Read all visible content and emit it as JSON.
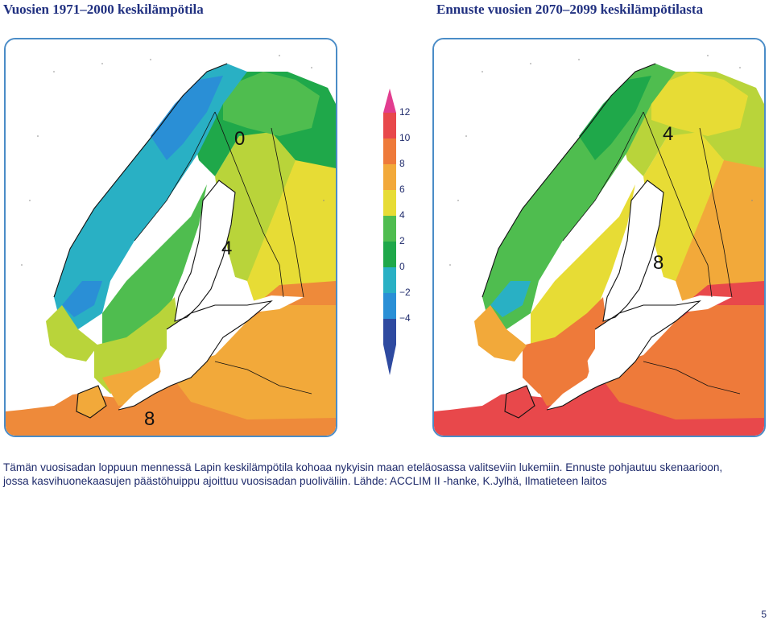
{
  "titles": {
    "left": "Vuosien 1971–2000 keskilämpötila",
    "right": "Ennuste vuosien 2070–2099 keskilämpötilasta"
  },
  "maps": {
    "left": {
      "labels": [
        "0",
        "4",
        "8"
      ],
      "colors": {
        "sea": "#ffffff",
        "north": "#2a8fd6",
        "mountains": "#29b0c4",
        "green_dark": "#1fa84a",
        "green": "#4fbd4f",
        "yellow_green": "#b9d43a",
        "yellow": "#e7dc35",
        "orange": "#f2a93a",
        "orange_dark": "#ee8a3a"
      }
    },
    "right": {
      "labels": [
        "4",
        "8"
      ],
      "colors": {
        "sea": "#ffffff",
        "mountains": "#29b0c4",
        "green": "#4fbd4f",
        "yellow_green": "#b9d43a",
        "yellow": "#e7dc35",
        "orange": "#f2a93a",
        "orange_dark": "#ee7a3a",
        "red": "#e8484b"
      }
    }
  },
  "legend": {
    "ticks": [
      "12",
      "10",
      "8",
      "6",
      "4",
      "2",
      "0",
      "−2",
      "−4"
    ],
    "colors": [
      "#e8484b",
      "#ee7a3a",
      "#f2a93a",
      "#e7dc35",
      "#4fbd4f",
      "#1fa84a",
      "#29b0c4",
      "#2a8fd6",
      "#2e4aa0"
    ],
    "top_color": "#e23d8f"
  },
  "caption": {
    "line1": "Tämän vuosisadan loppuun mennessä Lapin keskilämpötila kohoaa nykyisin maan eteläosassa valitseviin lukemiin. Ennuste pohjautuu skenaarioon,",
    "line2": "jossa kasvihuonekaasujen päästöhuippu ajoittuu vuosisadan puoliväliin. Lähde: ACCLIM II -hanke, K.Jylhä, Ilmatieteen laitos"
  },
  "page_number": "5"
}
